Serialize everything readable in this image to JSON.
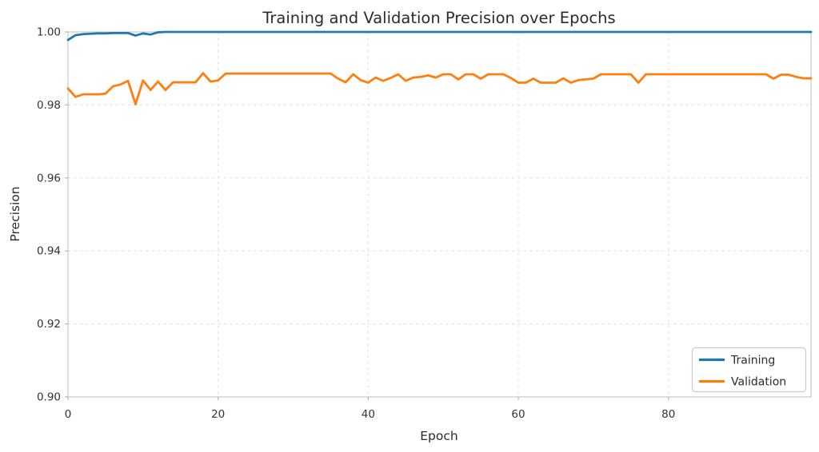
{
  "chart_data": {
    "type": "line",
    "title": "Training and Validation Precision over Epochs",
    "xlabel": "Epoch",
    "ylabel": "Precision",
    "xlim": [
      0,
      99
    ],
    "ylim": [
      0.9,
      1.0
    ],
    "x_tick_labels": [
      "0",
      "20",
      "40",
      "60",
      "80"
    ],
    "x_ticks": [
      0,
      20,
      40,
      60,
      80
    ],
    "y_tick_labels": [
      "0.90",
      "0.92",
      "0.94",
      "0.96",
      "0.98",
      "1.00"
    ],
    "y_ticks": [
      0.9,
      0.92,
      0.94,
      0.96,
      0.98,
      1.0
    ],
    "grid": true,
    "grid_style": "dashed",
    "legend_position": "lower right",
    "background_color": "#ffffff",
    "x": [
      0,
      1,
      2,
      3,
      4,
      5,
      6,
      7,
      8,
      9,
      10,
      11,
      12,
      13,
      14,
      15,
      16,
      17,
      18,
      19,
      20,
      21,
      22,
      23,
      24,
      25,
      26,
      27,
      28,
      29,
      30,
      31,
      32,
      33,
      34,
      35,
      36,
      37,
      38,
      39,
      40,
      41,
      42,
      43,
      44,
      45,
      46,
      47,
      48,
      49,
      50,
      51,
      52,
      53,
      54,
      55,
      56,
      57,
      58,
      59,
      60,
      61,
      62,
      63,
      64,
      65,
      66,
      67,
      68,
      69,
      70,
      71,
      72,
      73,
      74,
      75,
      76,
      77,
      78,
      79,
      80,
      81,
      82,
      83,
      84,
      85,
      86,
      87,
      88,
      89,
      90,
      91,
      92,
      93,
      94,
      95,
      96,
      97,
      98,
      99
    ],
    "series": [
      {
        "name": "Training",
        "color": "#1f77b4",
        "values": [
          0.9978,
          0.9991,
          0.9994,
          0.9995,
          0.9996,
          0.9996,
          0.9997,
          0.9997,
          0.9997,
          0.999,
          0.9996,
          0.9993,
          0.9999,
          1.0,
          1.0,
          1.0,
          1.0,
          1.0,
          1.0,
          1.0,
          1.0,
          1.0,
          1.0,
          1.0,
          1.0,
          1.0,
          1.0,
          1.0,
          1.0,
          1.0,
          1.0,
          1.0,
          1.0,
          1.0,
          1.0,
          1.0,
          1.0,
          1.0,
          1.0,
          1.0,
          1.0,
          1.0,
          1.0,
          1.0,
          1.0,
          1.0,
          1.0,
          1.0,
          1.0,
          1.0,
          1.0,
          1.0,
          1.0,
          1.0,
          1.0,
          1.0,
          1.0,
          1.0,
          1.0,
          1.0,
          1.0,
          1.0,
          1.0,
          1.0,
          1.0,
          1.0,
          1.0,
          1.0,
          1.0,
          1.0,
          1.0,
          1.0,
          1.0,
          1.0,
          1.0,
          1.0,
          1.0,
          1.0,
          1.0,
          1.0,
          1.0,
          1.0,
          1.0,
          1.0,
          1.0,
          1.0,
          1.0,
          1.0,
          1.0,
          1.0,
          1.0,
          1.0,
          1.0,
          1.0,
          1.0,
          1.0,
          1.0,
          1.0,
          1.0,
          1.0
        ]
      },
      {
        "name": "Validation",
        "color": "#ff7f0e",
        "values": [
          0.9845,
          0.9822,
          0.9829,
          0.9829,
          0.9829,
          0.9831,
          0.9851,
          0.9856,
          0.9866,
          0.9802,
          0.9867,
          0.9841,
          0.9864,
          0.9841,
          0.9862,
          0.9862,
          0.9862,
          0.9862,
          0.9887,
          0.9864,
          0.9867,
          0.9886,
          0.9886,
          0.9886,
          0.9886,
          0.9886,
          0.9886,
          0.9886,
          0.9886,
          0.9886,
          0.9886,
          0.9886,
          0.9886,
          0.9886,
          0.9886,
          0.9886,
          0.9872,
          0.9862,
          0.9884,
          0.9868,
          0.9861,
          0.9875,
          0.9866,
          0.9874,
          0.9884,
          0.9866,
          0.9875,
          0.9877,
          0.9881,
          0.9875,
          0.9884,
          0.9884,
          0.987,
          0.9884,
          0.9884,
          0.9872,
          0.9884,
          0.9884,
          0.9884,
          0.9874,
          0.9861,
          0.9861,
          0.9872,
          0.9861,
          0.9861,
          0.9861,
          0.9873,
          0.9861,
          0.9868,
          0.987,
          0.9872,
          0.9884,
          0.9884,
          0.9884,
          0.9884,
          0.9884,
          0.9861,
          0.9884,
          0.9884,
          0.9884,
          0.9884,
          0.9884,
          0.9884,
          0.9884,
          0.9884,
          0.9884,
          0.9884,
          0.9884,
          0.9884,
          0.9884,
          0.9884,
          0.9884,
          0.9884,
          0.9884,
          0.9872,
          0.9883,
          0.9883,
          0.9877,
          0.9873,
          0.9873
        ]
      }
    ]
  }
}
